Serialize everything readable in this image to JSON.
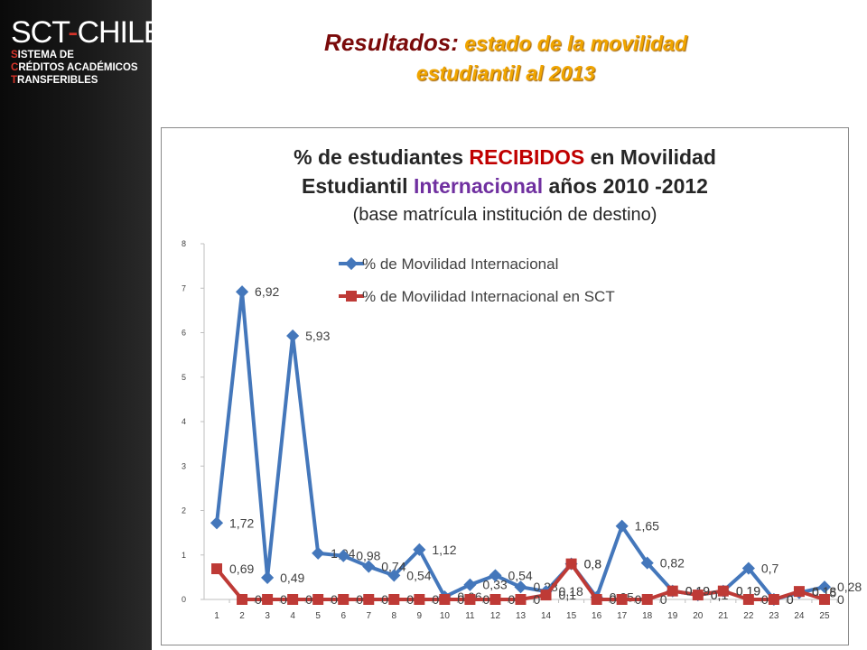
{
  "logo": {
    "brand_left": "SCT",
    "brand_dash": "-",
    "brand_right": "CHILE",
    "line1_initial": "S",
    "line1_rest": "ISTEMA DE",
    "line2_initial": "C",
    "line2_rest": "RÉDITOS ACADÉMICOS",
    "line3_initial": "T",
    "line3_rest": "RANSFERIBLES"
  },
  "slide": {
    "title_part1": "Resultados:",
    "title_part2": " estado de la movilidad",
    "title_line2": "estudiantil al 2013"
  },
  "chart_title": {
    "l1_a": "% de estudiantes ",
    "l1_b": "RECIBIDOS",
    "l1_c": " en Movilidad",
    "l2_a": "Estudiantil ",
    "l2_b": "Internacional",
    "l2_c": "  años 2010 -2012",
    "l3": "(base matrícula institución de destino)"
  },
  "colors": {
    "series1": "#4477bb",
    "series2": "#be3a36",
    "accent_red": "#c00000",
    "accent_purple": "#7030a0",
    "title_dark_red": "#7a0a0a",
    "title_gold": "#f0a500"
  },
  "chart_data": {
    "type": "line",
    "title": "% de estudiantes RECIBIDOS en Movilidad Estudiantil Internacional  años 2010 -2012",
    "subtitle": "(base matrícula institución de destino)",
    "xlabel": "",
    "ylabel": "",
    "x": [
      "1",
      "2",
      "3",
      "4",
      "5",
      "6",
      "7",
      "8",
      "9",
      "10",
      "11",
      "12",
      "13",
      "14",
      "15",
      "16",
      "17",
      "18",
      "19",
      "20",
      "21",
      "22",
      "23",
      "24",
      "25"
    ],
    "ylim": [
      0,
      8
    ],
    "yticks": [
      "0",
      "1",
      "2",
      "3",
      "4",
      "5",
      "6",
      "7",
      "8"
    ],
    "grid": false,
    "legend_position": "top",
    "series": [
      {
        "name": "% de Movilidad Internacional",
        "values": [
          1.72,
          6.92,
          0.49,
          5.93,
          1.04,
          0.98,
          0.74,
          0.54,
          1.12,
          0.06,
          0.33,
          0.54,
          0.28,
          0.18,
          0.8,
          0.05,
          1.65,
          0.82,
          0.19,
          0.1,
          0.19,
          0.7,
          0,
          0.15,
          0.28
        ],
        "labels": [
          "1,72",
          "6,92",
          "0,49",
          "5,93",
          "1,04",
          "0,98",
          "0,74",
          "0,54",
          "1,12",
          "0,06",
          "0,33",
          "0,54",
          "0,28",
          "0,18",
          "0,8",
          "0,05",
          "1,65",
          "0,82",
          "0,19",
          "0,1",
          "0,19",
          "0,7",
          "0",
          "0,15",
          "0,28"
        ]
      },
      {
        "name": "% de Movilidad Internacional en SCT",
        "values": [
          0.69,
          0,
          0,
          0,
          0,
          0,
          0,
          0,
          0,
          0,
          0,
          0,
          0,
          0.1,
          0.8,
          0,
          0,
          0,
          0.19,
          0.1,
          0.19,
          0,
          0,
          0.18,
          0
        ],
        "labels": [
          "0,69",
          "0",
          "0",
          "0",
          "0",
          "0",
          "0",
          "0",
          "0",
          "0",
          "0",
          "0",
          "0",
          "0,1",
          "0,8",
          "0",
          "0",
          "0",
          "0,19",
          "0,1",
          "0,19",
          "0",
          "0",
          "0,18",
          "0"
        ]
      }
    ]
  }
}
